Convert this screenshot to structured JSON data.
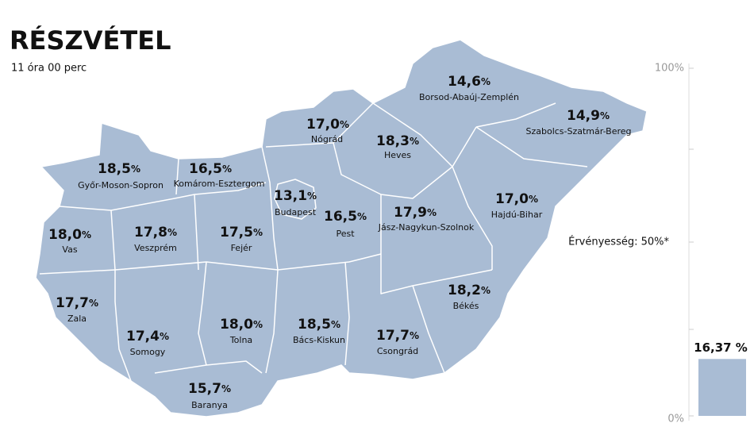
{
  "header": {
    "title": "RÉSZVÉTEL",
    "subtitle": "11 óra 00 perc"
  },
  "unit": "%",
  "counties": [
    {
      "name": "Győr-Moson-Sopron",
      "value": "18,5"
    },
    {
      "name": "Komárom-Esztergom",
      "value": "16,5"
    },
    {
      "name": "Nógrád",
      "value": "17,0"
    },
    {
      "name": "Borsod-Abaúj-Zemplén",
      "value": "14,6"
    },
    {
      "name": "Szabolcs-Szatmár-Bereg",
      "value": "14,9"
    },
    {
      "name": "Heves",
      "value": "18,3"
    },
    {
      "name": "Budapest",
      "value": "13,1"
    },
    {
      "name": "Pest",
      "value": "16,5"
    },
    {
      "name": "Jász-Nagykun-Szolnok",
      "value": "17,9"
    },
    {
      "name": "Hajdú-Bihar",
      "value": "17,0"
    },
    {
      "name": "Vas",
      "value": "18,0"
    },
    {
      "name": "Veszprém",
      "value": "17,8"
    },
    {
      "name": "Fejér",
      "value": "17,5"
    },
    {
      "name": "Zala",
      "value": "17,7"
    },
    {
      "name": "Somogy",
      "value": "17,4"
    },
    {
      "name": "Tolna",
      "value": "18,0"
    },
    {
      "name": "Bács-Kiskun",
      "value": "18,5"
    },
    {
      "name": "Csongrád",
      "value": "17,7"
    },
    {
      "name": "Békés",
      "value": "18,2"
    },
    {
      "name": "Baranya",
      "value": "15,7"
    }
  ],
  "gauge": {
    "ticks": [
      {
        "value": 0,
        "label": "0%"
      },
      {
        "value": 50,
        "label": "Érvényesség: 50%*"
      },
      {
        "value": 100,
        "label": "100%"
      }
    ],
    "value": 16.37,
    "value_label": "16,37 %",
    "color": "#a9bcd4"
  }
}
